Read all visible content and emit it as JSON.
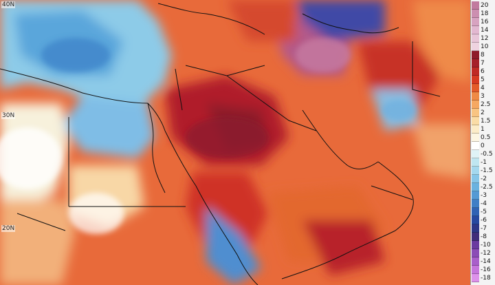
{
  "map": {
    "lat_labels": [
      "40N",
      "30N",
      "20N"
    ]
  },
  "legend": {
    "labels": [
      "20",
      "18",
      "16",
      "14",
      "12",
      "10",
      "8",
      "7",
      "6",
      "5",
      "4",
      "3",
      "2.5",
      "2",
      "1.5",
      "1",
      "0.5",
      "0",
      "-0.5",
      "-1",
      "-1.5",
      "-2",
      "-2.5",
      "-3",
      "-4",
      "-5",
      "-6",
      "-7",
      "-8",
      "-10",
      "-12",
      "-14",
      "-16",
      "-18"
    ],
    "colors": [
      "#c17a9e",
      "#cc8fb0",
      "#d7a3c0",
      "#e2b8d0",
      "#e8c6d8",
      "#eed3e0",
      "#8e1b2a",
      "#a5202a",
      "#bf2a25",
      "#d63a22",
      "#e35b2a",
      "#ef8a45",
      "#f5a862",
      "#f8c482",
      "#fadca6",
      "#fcecc8",
      "#fdf6e2",
      "#ffffff",
      "#dff3f7",
      "#bfe6f1",
      "#a4d8ee",
      "#86c6e8",
      "#6ab2df",
      "#549ad4",
      "#3f7fc6",
      "#2f63b4",
      "#2649a0",
      "#2c3787",
      "#3f2d7a",
      "#6a3aa0",
      "#8b4cb6",
      "#a95fca",
      "#c676dc",
      "#dd92ea"
    ]
  }
}
